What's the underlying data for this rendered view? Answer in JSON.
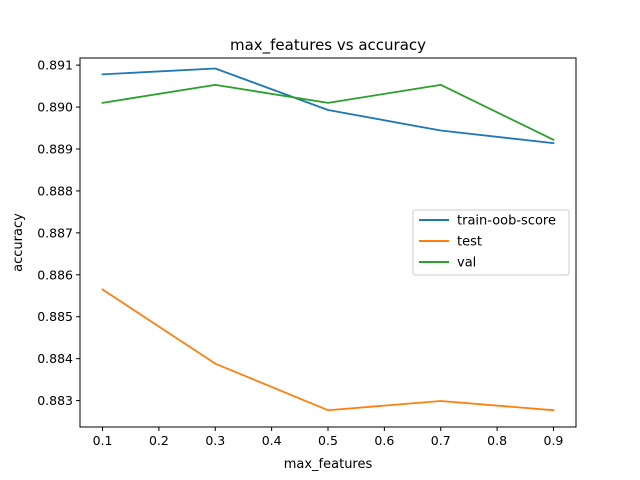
{
  "chart_data": {
    "type": "line",
    "title": "max_features vs accuracy",
    "xlabel": "max_features",
    "ylabel": "accuracy",
    "x": [
      0.1,
      0.3,
      0.5,
      0.7,
      0.9
    ],
    "xlim": [
      0.06,
      0.94
    ],
    "ylim": [
      0.88237,
      0.89117
    ],
    "xticks": [
      0.1,
      0.2,
      0.3,
      0.4,
      0.5,
      0.6,
      0.7,
      0.8,
      0.9
    ],
    "xtick_labels": [
      "0.1",
      "0.2",
      "0.3",
      "0.4",
      "0.5",
      "0.6",
      "0.7",
      "0.8",
      "0.9"
    ],
    "yticks": [
      0.883,
      0.884,
      0.885,
      0.886,
      0.887,
      0.888,
      0.889,
      0.89,
      0.891
    ],
    "ytick_labels": [
      "0.883",
      "0.884",
      "0.885",
      "0.886",
      "0.887",
      "0.888",
      "0.889",
      "0.890",
      "0.891"
    ],
    "grid": false,
    "legend_position": "center-right",
    "series": [
      {
        "name": "train-oob-score",
        "color": "#1f77b4",
        "values": [
          0.89078,
          0.89092,
          0.88993,
          0.88944,
          0.88914
        ]
      },
      {
        "name": "test",
        "color": "#ff7f0e",
        "values": [
          0.88565,
          0.88388,
          0.88277,
          0.88299,
          0.88277
        ]
      },
      {
        "name": "val",
        "color": "#2ca02c",
        "values": [
          0.8901,
          0.89053,
          0.8901,
          0.89053,
          0.88922
        ]
      }
    ]
  }
}
